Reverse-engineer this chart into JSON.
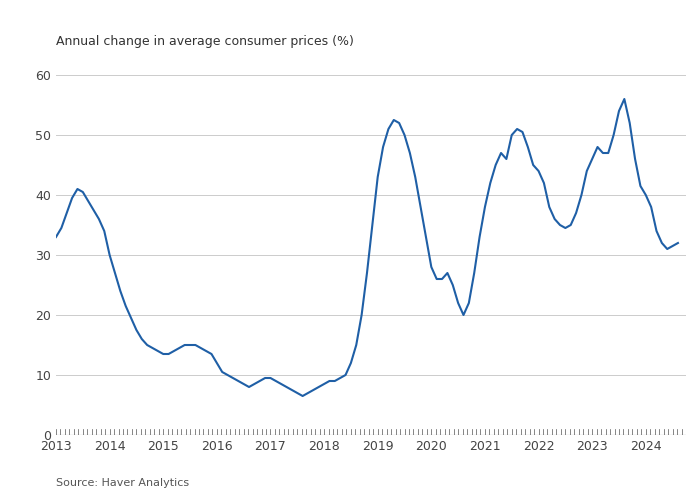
{
  "title": "Annual change in average consumer prices (%)",
  "source": "Source: Haver Analytics",
  "line_color": "#1f5fa6",
  "background_color": "#ffffff",
  "ylim": [
    0,
    60
  ],
  "yticks": [
    0,
    10,
    20,
    30,
    40,
    50,
    60
  ],
  "x_labels": [
    "2013",
    "2014",
    "2015",
    "2016",
    "2017",
    "2018",
    "2019",
    "2020",
    "2021",
    "2022",
    "2023",
    "2024"
  ],
  "data": [
    [
      2013.0,
      33.0
    ],
    [
      2013.1,
      34.5
    ],
    [
      2013.2,
      37.0
    ],
    [
      2013.3,
      39.5
    ],
    [
      2013.4,
      41.0
    ],
    [
      2013.5,
      40.5
    ],
    [
      2013.6,
      39.0
    ],
    [
      2013.7,
      37.5
    ],
    [
      2013.8,
      36.0
    ],
    [
      2013.9,
      34.0
    ],
    [
      2014.0,
      30.0
    ],
    [
      2014.1,
      27.0
    ],
    [
      2014.2,
      24.0
    ],
    [
      2014.3,
      21.5
    ],
    [
      2014.4,
      19.5
    ],
    [
      2014.5,
      17.5
    ],
    [
      2014.6,
      16.0
    ],
    [
      2014.7,
      15.0
    ],
    [
      2014.8,
      14.5
    ],
    [
      2014.9,
      14.0
    ],
    [
      2015.0,
      13.5
    ],
    [
      2015.1,
      13.5
    ],
    [
      2015.2,
      14.0
    ],
    [
      2015.3,
      14.5
    ],
    [
      2015.4,
      15.0
    ],
    [
      2015.5,
      15.0
    ],
    [
      2015.6,
      15.0
    ],
    [
      2015.7,
      14.5
    ],
    [
      2015.8,
      14.0
    ],
    [
      2015.9,
      13.5
    ],
    [
      2016.0,
      12.0
    ],
    [
      2016.1,
      10.5
    ],
    [
      2016.2,
      10.0
    ],
    [
      2016.3,
      9.5
    ],
    [
      2016.4,
      9.0
    ],
    [
      2016.5,
      8.5
    ],
    [
      2016.6,
      8.0
    ],
    [
      2016.7,
      8.5
    ],
    [
      2016.8,
      9.0
    ],
    [
      2016.9,
      9.5
    ],
    [
      2017.0,
      9.5
    ],
    [
      2017.1,
      9.0
    ],
    [
      2017.2,
      8.5
    ],
    [
      2017.3,
      8.0
    ],
    [
      2017.4,
      7.5
    ],
    [
      2017.5,
      7.0
    ],
    [
      2017.6,
      6.5
    ],
    [
      2017.7,
      7.0
    ],
    [
      2017.8,
      7.5
    ],
    [
      2017.9,
      8.0
    ],
    [
      2018.0,
      8.5
    ],
    [
      2018.1,
      9.0
    ],
    [
      2018.2,
      9.0
    ],
    [
      2018.3,
      9.5
    ],
    [
      2018.4,
      10.0
    ],
    [
      2018.5,
      12.0
    ],
    [
      2018.6,
      15.0
    ],
    [
      2018.7,
      20.0
    ],
    [
      2018.8,
      27.0
    ],
    [
      2018.9,
      35.0
    ],
    [
      2019.0,
      43.0
    ],
    [
      2019.1,
      48.0
    ],
    [
      2019.2,
      51.0
    ],
    [
      2019.3,
      52.5
    ],
    [
      2019.4,
      52.0
    ],
    [
      2019.5,
      50.0
    ],
    [
      2019.6,
      47.0
    ],
    [
      2019.7,
      43.0
    ],
    [
      2019.8,
      38.0
    ],
    [
      2019.9,
      33.0
    ],
    [
      2020.0,
      28.0
    ],
    [
      2020.1,
      26.0
    ],
    [
      2020.2,
      26.0
    ],
    [
      2020.3,
      27.0
    ],
    [
      2020.4,
      25.0
    ],
    [
      2020.5,
      22.0
    ],
    [
      2020.6,
      20.0
    ],
    [
      2020.7,
      22.0
    ],
    [
      2020.8,
      27.0
    ],
    [
      2020.9,
      33.0
    ],
    [
      2021.0,
      38.0
    ],
    [
      2021.1,
      42.0
    ],
    [
      2021.2,
      45.0
    ],
    [
      2021.3,
      47.0
    ],
    [
      2021.4,
      46.0
    ],
    [
      2021.5,
      50.0
    ],
    [
      2021.6,
      51.0
    ],
    [
      2021.7,
      50.5
    ],
    [
      2021.8,
      48.0
    ],
    [
      2021.9,
      45.0
    ],
    [
      2022.0,
      44.0
    ],
    [
      2022.1,
      42.0
    ],
    [
      2022.2,
      38.0
    ],
    [
      2022.3,
      36.0
    ],
    [
      2022.4,
      35.0
    ],
    [
      2022.5,
      34.5
    ],
    [
      2022.6,
      35.0
    ],
    [
      2022.7,
      37.0
    ],
    [
      2022.8,
      40.0
    ],
    [
      2022.9,
      44.0
    ],
    [
      2023.0,
      46.0
    ],
    [
      2023.1,
      48.0
    ],
    [
      2023.2,
      47.0
    ],
    [
      2023.3,
      47.0
    ],
    [
      2023.4,
      50.0
    ],
    [
      2023.5,
      54.0
    ],
    [
      2023.6,
      56.0
    ],
    [
      2023.7,
      52.0
    ],
    [
      2023.8,
      46.0
    ],
    [
      2023.9,
      41.5
    ],
    [
      2024.0,
      40.0
    ],
    [
      2024.1,
      38.0
    ],
    [
      2024.2,
      34.0
    ],
    [
      2024.3,
      32.0
    ],
    [
      2024.4,
      31.0
    ],
    [
      2024.5,
      31.5
    ],
    [
      2024.6,
      32.0
    ]
  ]
}
